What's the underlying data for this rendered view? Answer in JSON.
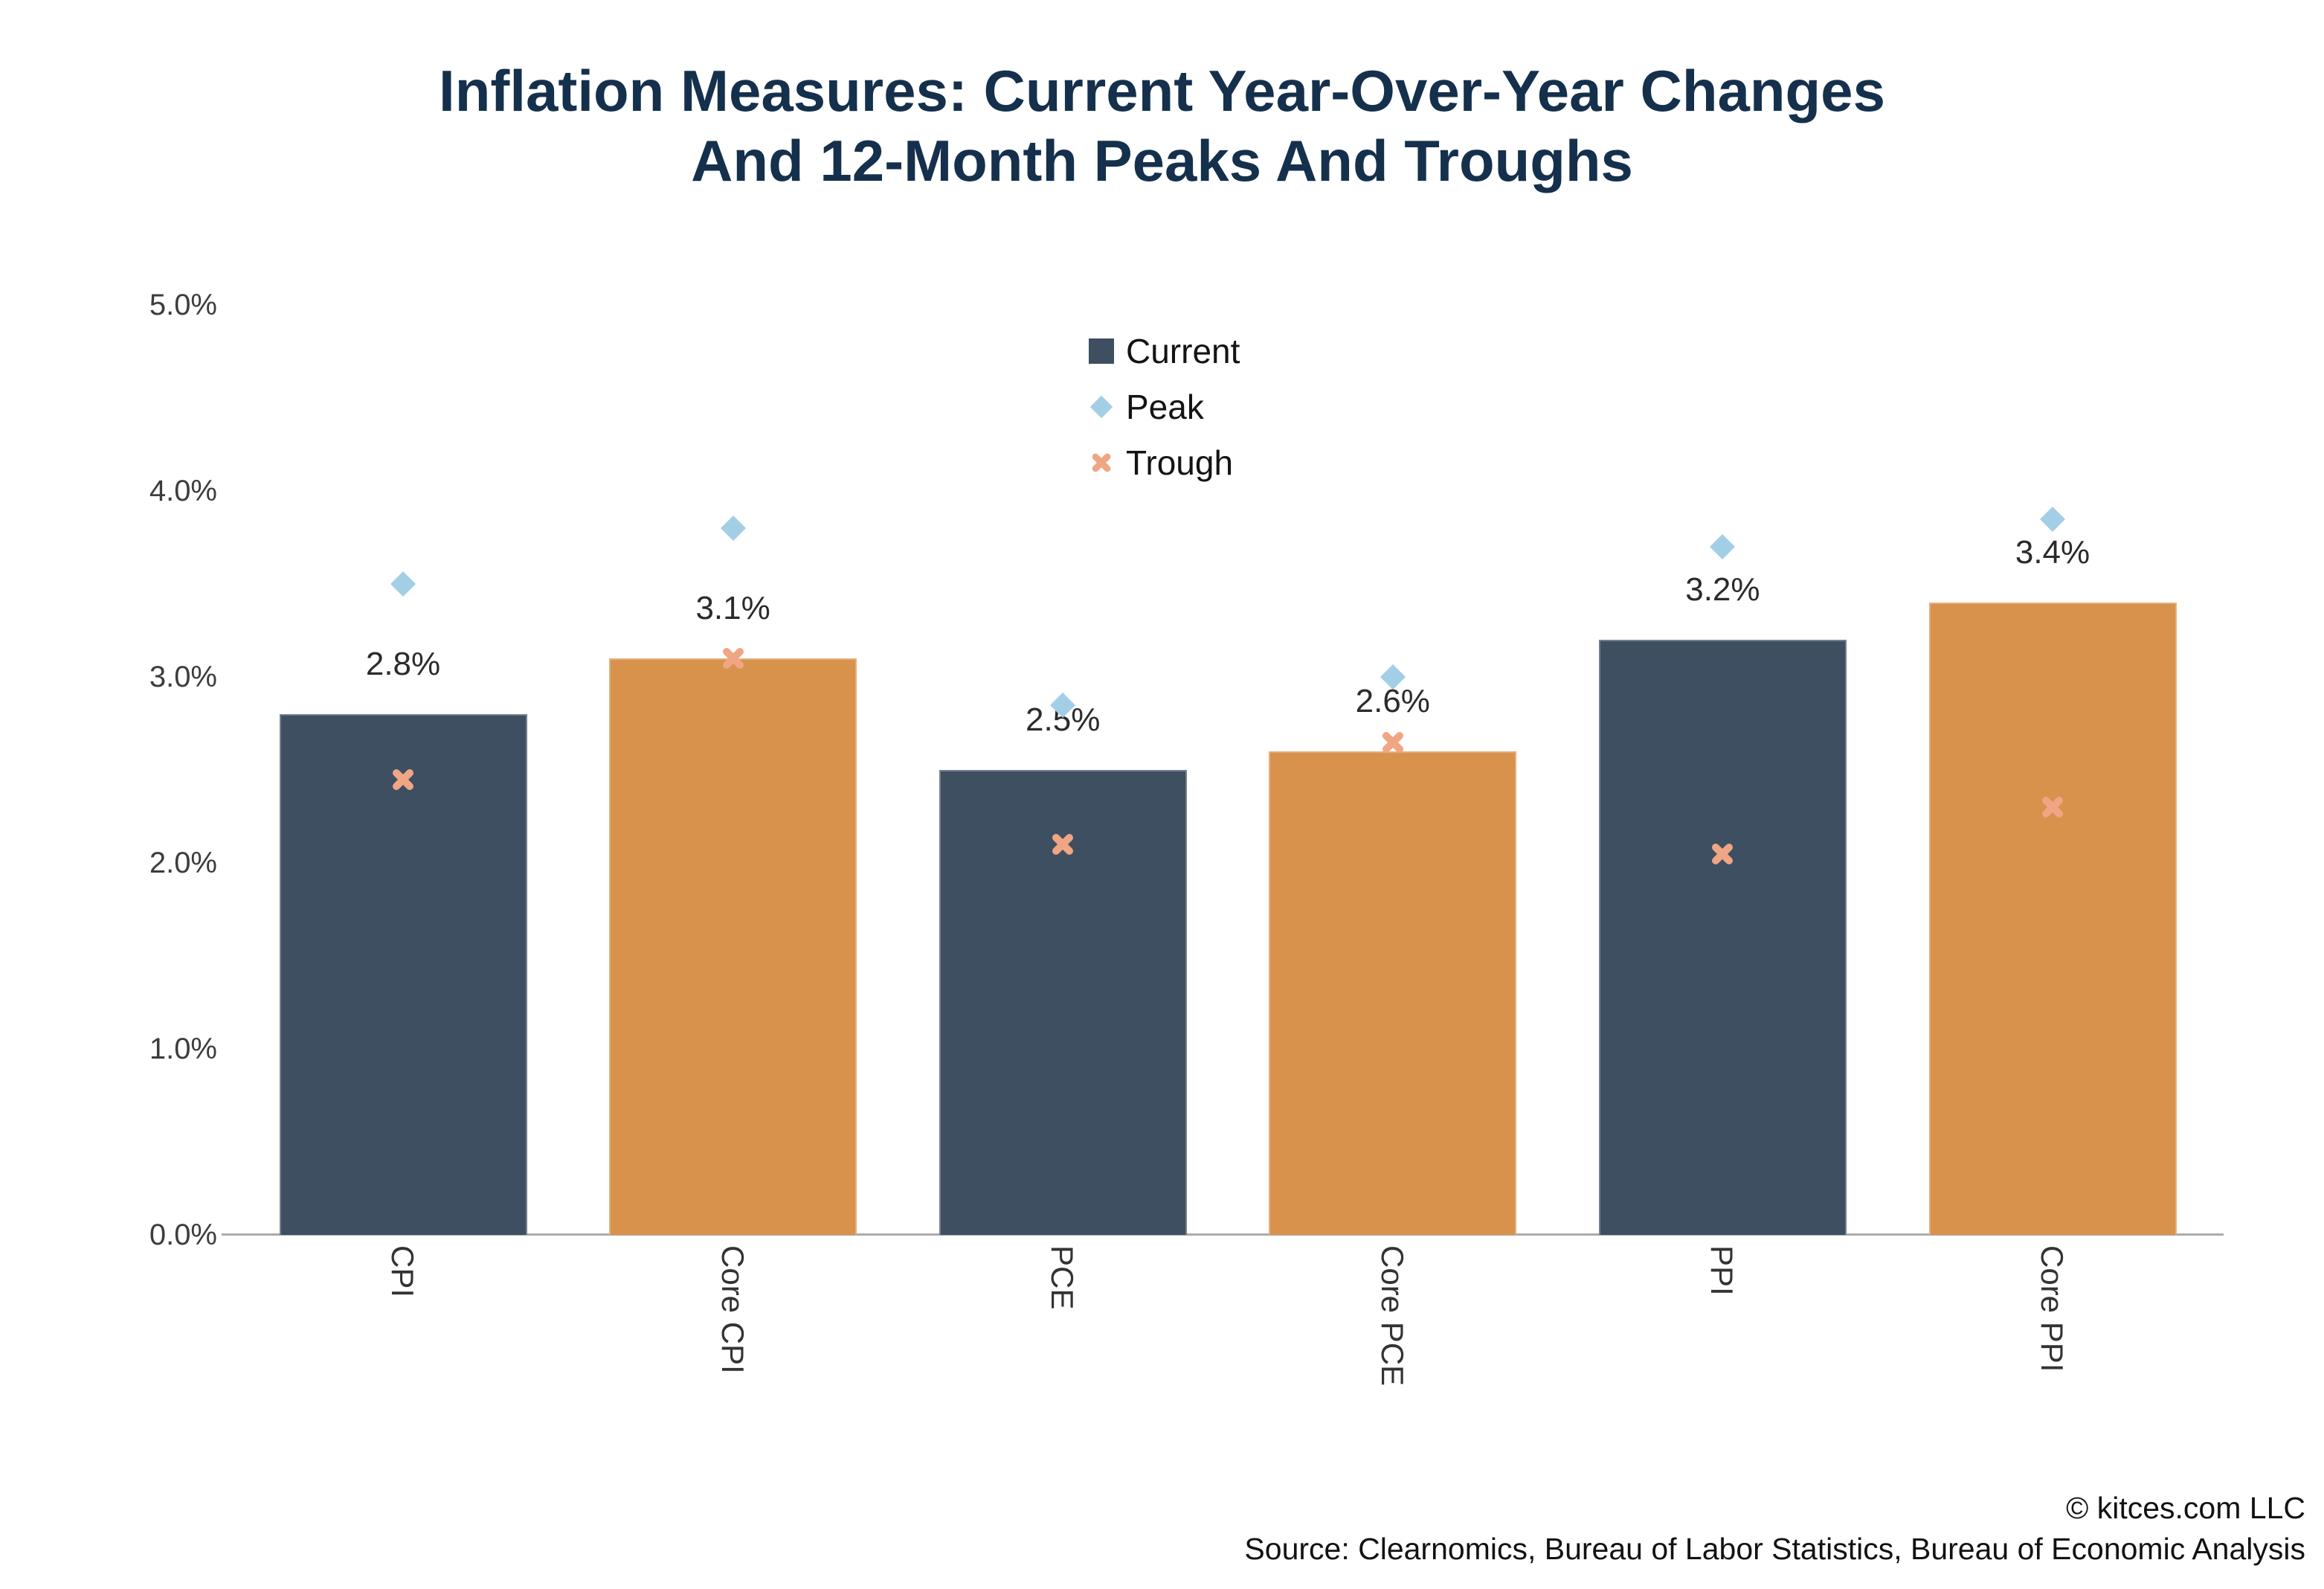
{
  "title": {
    "line1": "Inflation Measures: Current Year-Over-Year Changes",
    "line2": "And 12-Month Peaks And Troughs",
    "color": "#15304C"
  },
  "legend": {
    "items": [
      {
        "label": "Current",
        "marker": "square",
        "color": "#3D4F60"
      },
      {
        "label": "Peak",
        "marker": "diamond",
        "color": "#A3CFE6"
      },
      {
        "label": "Trough",
        "marker": "x-cross",
        "color": "#F0A584"
      }
    ]
  },
  "footer": {
    "copyright": "© kitces.com LLC",
    "source": "Source: Clearnomics, Bureau of Labor Statistics, Bureau of Economic Analysis"
  },
  "chart_data": {
    "type": "bar",
    "title": "Inflation Measures: Current Year-Over-Year Changes And 12-Month Peaks And Troughs",
    "xlabel": "",
    "ylabel": "",
    "ylim": [
      0,
      5
    ],
    "grid": false,
    "legend_position": "upper center-left",
    "yticks": [
      {
        "label": "5.0%",
        "value": 5.0
      },
      {
        "label": "4.0%",
        "value": 4.0
      },
      {
        "label": "3.0%",
        "value": 3.0
      },
      {
        "label": "2.0%",
        "value": 2.0
      },
      {
        "label": "1.0%",
        "value": 1.0
      },
      {
        "label": "0.0%",
        "value": 0.0
      }
    ],
    "categories": [
      "CPI",
      "Core CPI",
      "PCE",
      "Core PCE",
      "PPI",
      "Core PPI"
    ],
    "bar_colors": [
      "#3D4F60",
      "#D8924C",
      "#3D4F60",
      "#D8924C",
      "#3D4F60",
      "#D8924C"
    ],
    "series": [
      {
        "name": "Current",
        "type": "bar",
        "values": [
          2.8,
          3.1,
          2.5,
          2.6,
          3.2,
          3.4
        ],
        "value_labels": [
          "2.8%",
          "3.1%",
          "2.5%",
          "2.6%",
          "3.2%",
          "3.4%"
        ]
      },
      {
        "name": "Peak",
        "type": "scatter",
        "marker": "diamond",
        "color": "#A3CFE6",
        "values": [
          3.5,
          3.8,
          2.85,
          3.0,
          3.7,
          3.85
        ]
      },
      {
        "name": "Trough",
        "type": "scatter",
        "marker": "x",
        "color": "#F0A584",
        "values": [
          2.45,
          3.1,
          2.1,
          2.65,
          2.05,
          2.3
        ]
      }
    ]
  }
}
